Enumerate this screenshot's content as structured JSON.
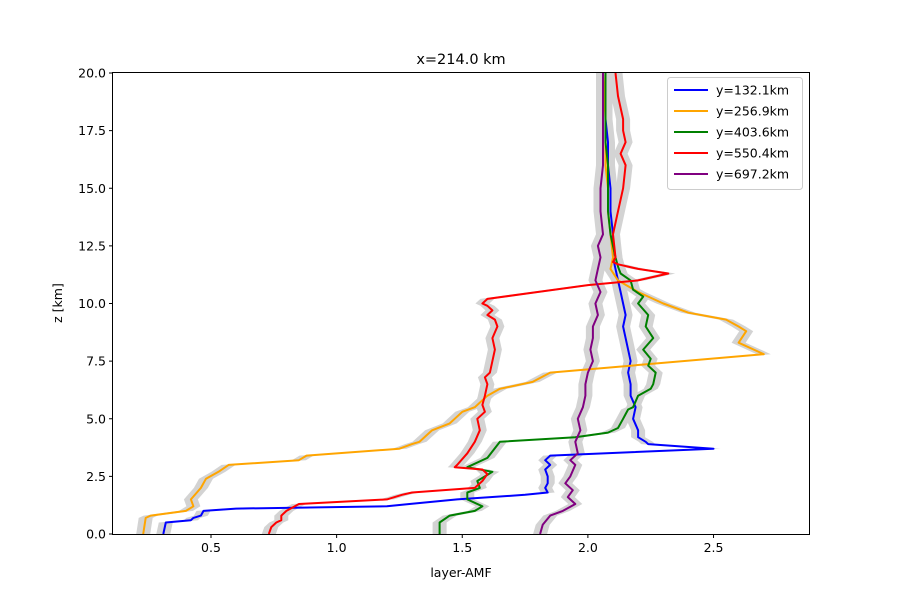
{
  "chart_data": {
    "type": "line",
    "title": "x=214.0 km",
    "xlabel": "layer-AMF",
    "ylabel": "z [km]",
    "xlim": [
      0.11,
      2.88
    ],
    "ylim": [
      0,
      20
    ],
    "xticks": [
      "0.5",
      "1.0",
      "1.5",
      "2.0",
      "2.5"
    ],
    "yticks": [
      "0.0",
      "2.5",
      "5.0",
      "7.5",
      "10.0",
      "12.5",
      "15.0",
      "17.5",
      "20.0"
    ],
    "grid": false,
    "legend_position": "top-right",
    "band_color": "#d3d3d3",
    "series": [
      {
        "name": "y=132.1km",
        "color": "#0000ff",
        "x": [
          0.31,
          0.32,
          0.42,
          0.43,
          0.46,
          0.47,
          0.6,
          1.2,
          1.29,
          1.48,
          1.75,
          1.84,
          1.83,
          1.84,
          1.84,
          1.83,
          1.85,
          1.83,
          1.85,
          2.5,
          2.24,
          2.23,
          2.2,
          2.2,
          2.18,
          2.19,
          2.17,
          2.17,
          2.16,
          2.17,
          2.16,
          2.15,
          2.14,
          2.15,
          2.14,
          2.13,
          2.12,
          2.11,
          2.1,
          2.1,
          2.09,
          2.09,
          2.08,
          2.08,
          2.07,
          2.07
        ],
        "y": [
          0.0,
          0.5,
          0.6,
          0.7,
          0.8,
          1.0,
          1.1,
          1.2,
          1.3,
          1.5,
          1.7,
          1.8,
          2.0,
          2.2,
          2.5,
          2.8,
          3.0,
          3.2,
          3.4,
          3.7,
          3.9,
          4.0,
          4.2,
          4.5,
          5.0,
          5.5,
          6.0,
          6.5,
          7.0,
          7.5,
          8.0,
          8.5,
          9.0,
          9.5,
          10.0,
          10.5,
          11.0,
          11.5,
          12.0,
          13.0,
          14.0,
          15.0,
          16.0,
          17.0,
          18.0,
          20.0
        ]
      },
      {
        "name": "y=256.9km",
        "color": "#ffa500",
        "x": [
          0.23,
          0.24,
          0.26,
          0.4,
          0.43,
          0.42,
          0.46,
          0.48,
          0.53,
          0.57,
          0.85,
          0.88,
          1.25,
          1.3,
          1.33,
          1.38,
          1.45,
          1.47,
          1.5,
          1.55,
          1.58,
          1.6,
          1.65,
          1.78,
          1.85,
          2.7,
          2.6,
          2.63,
          2.6,
          2.55,
          2.4,
          2.3,
          2.2,
          2.12,
          2.09,
          2.1,
          2.09,
          2.08,
          2.08,
          2.07,
          2.07,
          2.07,
          2.06
        ],
        "y": [
          0.0,
          0.7,
          0.8,
          1.0,
          1.2,
          1.5,
          2.0,
          2.4,
          2.7,
          3.0,
          3.2,
          3.4,
          3.7,
          3.9,
          4.0,
          4.5,
          4.8,
          5.0,
          5.3,
          5.5,
          5.8,
          6.0,
          6.3,
          6.6,
          7.0,
          7.8,
          8.3,
          8.8,
          9.0,
          9.3,
          9.6,
          10.0,
          10.5,
          11.0,
          11.5,
          12.0,
          13.0,
          14.0,
          15.0,
          16.0,
          17.0,
          18.0,
          20.0
        ]
      },
      {
        "name": "y=403.6km",
        "color": "#008000",
        "x": [
          1.41,
          1.41,
          1.45,
          1.55,
          1.58,
          1.52,
          1.52,
          1.57,
          1.56,
          1.62,
          1.52,
          1.6,
          1.65,
          1.95,
          2.08,
          2.12,
          2.14,
          2.15,
          2.16,
          2.18,
          2.2,
          2.25,
          2.26,
          2.27,
          2.24,
          2.25,
          2.22,
          2.26,
          2.23,
          2.24,
          2.2,
          2.22,
          2.18,
          2.17,
          2.13,
          2.12,
          2.11,
          2.1,
          2.09,
          2.08,
          2.08,
          2.08,
          2.07,
          2.07,
          2.07
        ],
        "y": [
          0.0,
          0.5,
          0.8,
          1.0,
          1.2,
          1.5,
          1.8,
          2.0,
          2.3,
          2.7,
          2.9,
          3.3,
          4.0,
          4.2,
          4.4,
          4.6,
          5.0,
          5.2,
          5.4,
          5.5,
          6.0,
          6.3,
          6.5,
          7.0,
          7.3,
          7.6,
          8.0,
          8.5,
          9.0,
          9.5,
          10.0,
          10.3,
          10.6,
          11.0,
          11.3,
          11.6,
          12.0,
          12.5,
          13.0,
          14.0,
          15.0,
          16.0,
          17.0,
          18.0,
          20.0
        ]
      },
      {
        "name": "y=550.4km",
        "color": "#ff0000",
        "x": [
          0.73,
          0.74,
          0.76,
          0.78,
          0.78,
          0.8,
          0.85,
          1.2,
          1.26,
          1.3,
          1.55,
          1.58,
          1.6,
          1.58,
          1.47,
          1.48,
          1.52,
          1.55,
          1.57,
          1.56,
          1.59,
          1.58,
          1.59,
          1.6,
          1.59,
          1.61,
          1.62,
          1.63,
          1.62,
          1.64,
          1.63,
          1.6,
          1.62,
          1.6,
          1.58,
          1.6,
          1.8,
          2.0,
          2.2,
          2.32,
          2.2,
          2.12,
          2.1,
          2.11,
          2.1,
          2.12,
          2.14,
          2.15,
          2.13,
          2.15,
          2.14,
          2.14,
          2.12,
          2.11
        ],
        "y": [
          0.0,
          0.3,
          0.5,
          0.6,
          0.8,
          1.0,
          1.3,
          1.5,
          1.7,
          1.8,
          2.0,
          2.3,
          2.6,
          2.8,
          2.9,
          3.0,
          3.5,
          4.0,
          4.5,
          5.0,
          5.3,
          5.6,
          6.0,
          6.5,
          6.8,
          7.0,
          7.5,
          8.0,
          8.5,
          9.0,
          9.3,
          9.5,
          9.7,
          9.9,
          10.0,
          10.2,
          10.5,
          10.8,
          11.0,
          11.3,
          11.5,
          11.7,
          11.8,
          12.0,
          13.0,
          14.0,
          15.0,
          16.0,
          16.5,
          17.0,
          17.5,
          18.0,
          19.0,
          20.0
        ]
      },
      {
        "name": "y=697.2km",
        "color": "#800080",
        "x": [
          1.81,
          1.82,
          1.85,
          1.9,
          1.95,
          1.92,
          1.94,
          1.91,
          1.93,
          1.95,
          1.93,
          1.96,
          1.95,
          1.97,
          1.96,
          1.98,
          1.99,
          1.99,
          2.0,
          2.02,
          2.01,
          2.02,
          2.02,
          2.04,
          2.03,
          2.05,
          2.03,
          2.04,
          2.05,
          2.04,
          2.06,
          2.05,
          2.05,
          2.06,
          2.06,
          2.06,
          2.06
        ],
        "y": [
          0.0,
          0.4,
          0.8,
          1.0,
          1.3,
          1.6,
          1.9,
          2.2,
          2.5,
          3.0,
          3.2,
          3.5,
          4.0,
          4.5,
          5.0,
          5.5,
          6.0,
          6.5,
          7.0,
          7.5,
          8.0,
          8.5,
          9.0,
          9.5,
          10.0,
          10.5,
          11.0,
          11.5,
          12.0,
          12.5,
          13.0,
          14.0,
          15.0,
          16.0,
          17.0,
          18.0,
          20.0
        ]
      }
    ]
  }
}
